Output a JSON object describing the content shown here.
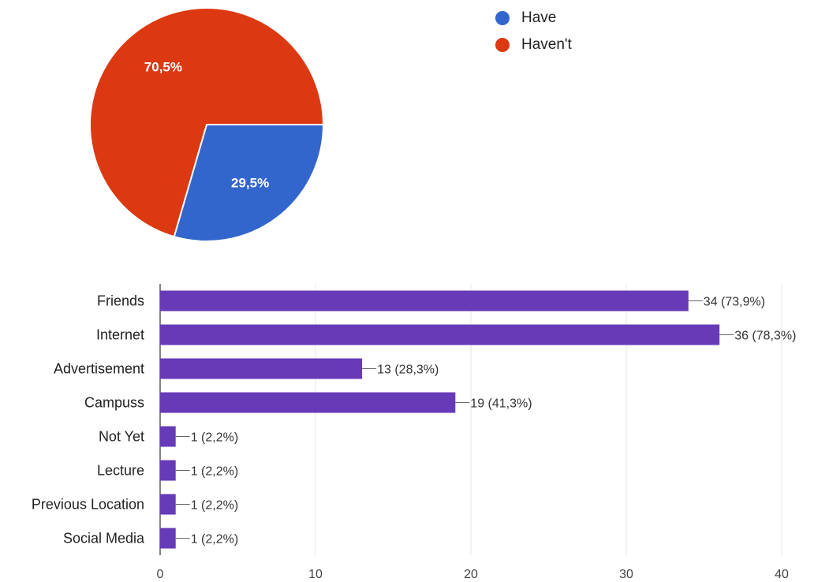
{
  "chart_data": [
    {
      "type": "pie",
      "labels": [
        "Have",
        "Haven't"
      ],
      "values": [
        29.5,
        70.5
      ],
      "value_labels": [
        "29,5%",
        "70,5%"
      ],
      "colors": [
        "#3366cc",
        "#dc3912"
      ],
      "legend": "top-right"
    },
    {
      "type": "bar",
      "orientation": "horizontal",
      "categories": [
        "Friends",
        "Internet",
        "Advertisement",
        "Campuss",
        "Not Yet",
        "Lecture",
        "Previous Location",
        "Social Media"
      ],
      "values": [
        34,
        36,
        13,
        19,
        1,
        1,
        1,
        1
      ],
      "data_labels": [
        "34 (73,9%)",
        "36 (78,3%)",
        "13 (28,3%)",
        "19 (41,3%)",
        "1 (2,2%)",
        "1 (2,2%)",
        "1 (2,2%)",
        "1 (2,2%)"
      ],
      "xlim": [
        0,
        40
      ],
      "xticks": [
        0,
        10,
        20,
        30,
        40
      ],
      "bar_color": "#673ab7",
      "grid": true
    }
  ]
}
